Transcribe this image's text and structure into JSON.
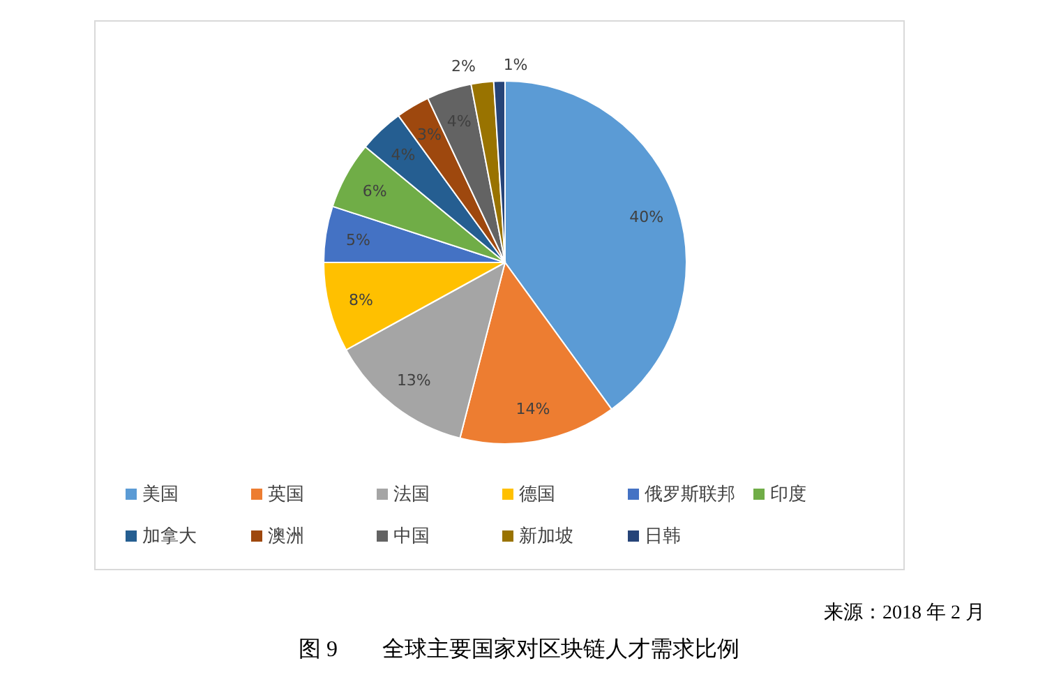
{
  "chart_data": {
    "type": "pie",
    "title": "图 9　　全球主要国家对区块链人才需求比例",
    "annotations": [
      "来源：2018 年 2 月"
    ],
    "categories": [
      "美国",
      "英国",
      "法国",
      "德国",
      "俄罗斯联邦",
      "印度",
      "加拿大",
      "澳洲",
      "中国",
      "新加坡",
      "日韩"
    ],
    "values": [
      40,
      14,
      13,
      8,
      5,
      6,
      4,
      3,
      4,
      2,
      1
    ],
    "colors": [
      "#5b9bd5",
      "#ed7d31",
      "#a5a5a5",
      "#ffc000",
      "#4472c4",
      "#70ad47",
      "#255e91",
      "#9e480e",
      "#636363",
      "#997300",
      "#264478"
    ],
    "value_labels": [
      "40%",
      "14%",
      "13%",
      "8%",
      "5%",
      "6%",
      "4%",
      "3%",
      "4%",
      "2%",
      "1%"
    ],
    "legend": "bottom"
  }
}
